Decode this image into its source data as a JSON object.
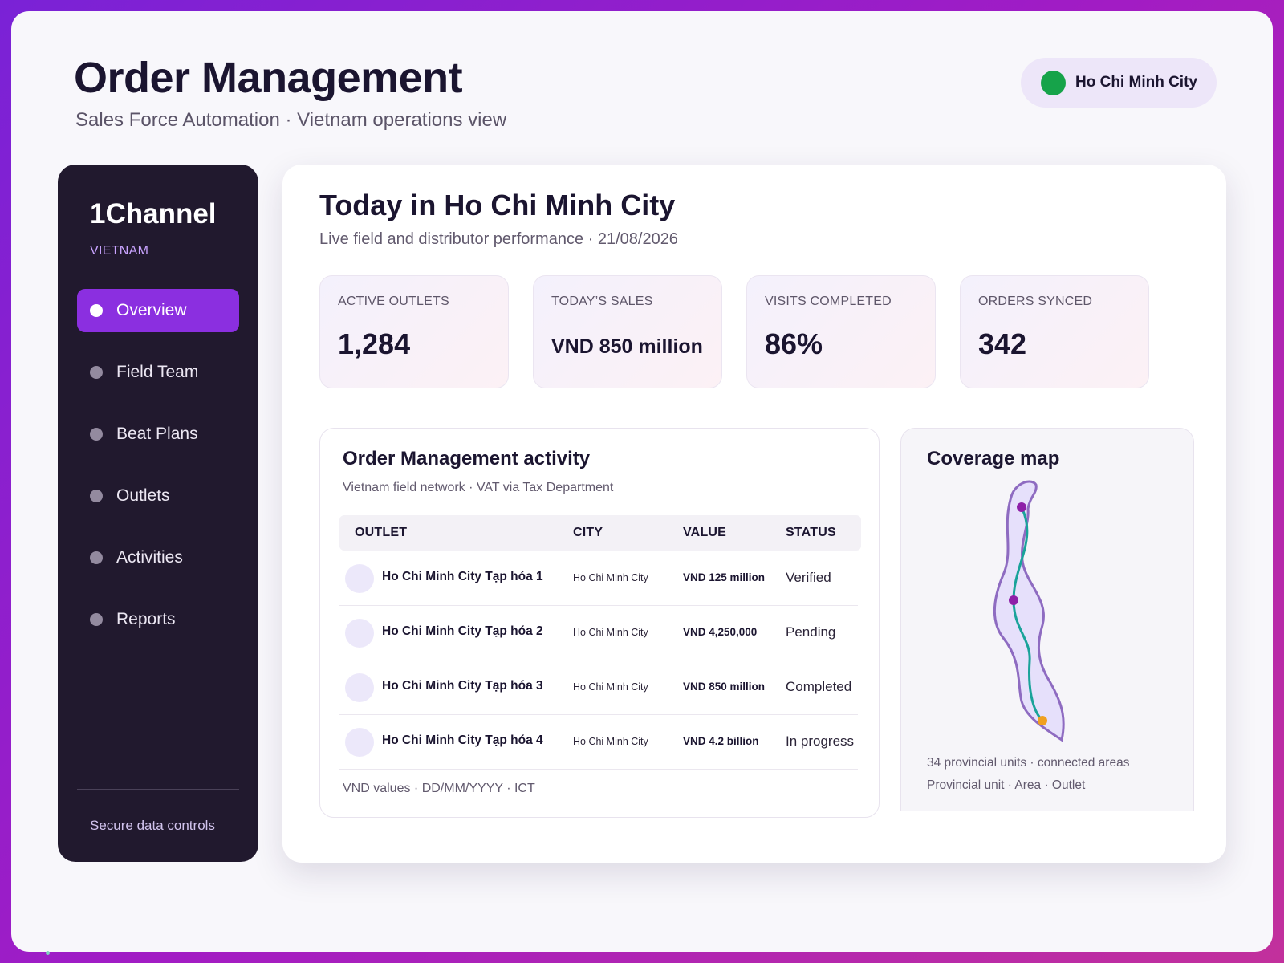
{
  "header": {
    "title": "Order Management",
    "subtitle": "Sales Force Automation · Vietnam operations view",
    "city_selector": {
      "label": "Ho Chi Minh City",
      "status_color": "#16a34a"
    }
  },
  "sidebar": {
    "brand": "1Channel",
    "country": "VIETNAM",
    "items": [
      {
        "label": "Overview",
        "active": true
      },
      {
        "label": "Field Team",
        "active": false
      },
      {
        "label": "Beat Plans",
        "active": false
      },
      {
        "label": "Outlets",
        "active": false
      },
      {
        "label": "Activities",
        "active": false
      },
      {
        "label": "Reports",
        "active": false
      }
    ],
    "footer_link": "Secure data controls",
    "accent_color": "#8b2fe0"
  },
  "main": {
    "title": "Today in Ho Chi Minh City",
    "subtitle": "Live field and distributor performance · 21/08/2026",
    "kpis": [
      {
        "label": "ACTIVE OUTLETS",
        "value": "1,284"
      },
      {
        "label": "TODAY’S SALES",
        "value": "VND 850 million"
      },
      {
        "label": "VISITS COMPLETED",
        "value": "86%"
      },
      {
        "label": "ORDERS SYNCED",
        "value": "342"
      }
    ],
    "activity": {
      "title": "Order Management activity",
      "subtitle": "Vietnam field network · VAT via Tax Department",
      "columns": [
        "OUTLET",
        "CITY",
        "VALUE",
        "STATUS"
      ],
      "rows": [
        {
          "outlet": "Ho Chi Minh City Tạp hóa 1",
          "city": "Ho Chi Minh City",
          "value": "VND 125 million",
          "status": "Verified"
        },
        {
          "outlet": "Ho Chi Minh City Tạp hóa 2",
          "city": "Ho Chi Minh City",
          "value": "VND 4,250,000",
          "status": "Pending"
        },
        {
          "outlet": "Ho Chi Minh City Tạp hóa 3",
          "city": "Ho Chi Minh City",
          "value": "VND 850 million",
          "status": "Completed"
        },
        {
          "outlet": "Ho Chi Minh City Tạp hóa 4",
          "city": "Ho Chi Minh City",
          "value": "VND 4.2 billion",
          "status": "In progress"
        }
      ],
      "footer": "VND values · DD/MM/YYYY · ICT"
    },
    "coverage": {
      "title": "Coverage map",
      "summary": "34 provincial units · connected areas",
      "hierarchy": "Provincial unit · Area · Outlet",
      "colors": {
        "outline": "#8e6bc1",
        "fill": "#e6e0fb",
        "route": "#1aa39a",
        "marker": "#8e1fa8",
        "endpoint": "#f0a020"
      }
    }
  }
}
